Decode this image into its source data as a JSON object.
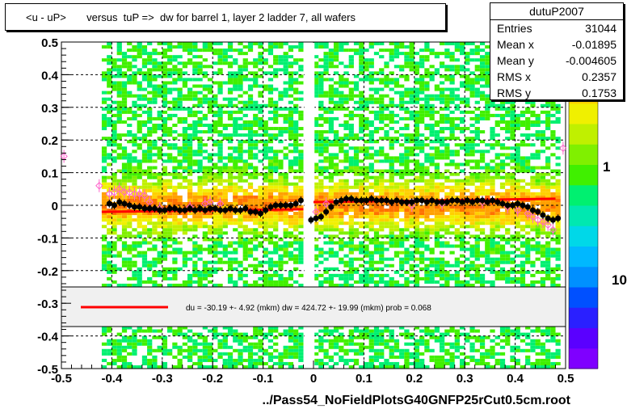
{
  "title": "<u - uP>       versus  tuP =>  dw for barrel 1, layer 2 ladder 7, all wafers",
  "xlabel": "../Pass54_NoFieldPlotsG40GNFP25rCut0.5cm.root",
  "stats": {
    "name": "dutuP2007",
    "rows": [
      {
        "label": "Entries",
        "value": "31044"
      },
      {
        "label": "Mean x",
        "value": "-0.01895"
      },
      {
        "label": "Mean y",
        "value": "-0.004605"
      },
      {
        "label": "RMS x",
        "value": "0.2357"
      },
      {
        "label": "RMS y",
        "value": "0.1753"
      }
    ]
  },
  "fit_text": "du =  -30.19 +-  4.92 (mkm) dw =  424.72 +- 19.99 (mkm) prob = 0.068",
  "palette_labels": [
    "1",
    "10"
  ],
  "chart_data": {
    "type": "scatter",
    "xlim": [
      -0.5,
      0.5
    ],
    "ylim": [
      -0.5,
      0.5
    ],
    "x_ticks": [
      -0.5,
      -0.4,
      -0.3,
      -0.2,
      -0.1,
      0,
      0.1,
      0.2,
      0.3,
      0.4,
      0.5
    ],
    "x_tick_labels": [
      "-0.5",
      "-0.4",
      "-0.3",
      "-0.2",
      "-0.1",
      "0",
      "0.1",
      "0.2",
      "0.3",
      "0.4",
      "0.5"
    ],
    "y_ticks": [
      -0.5,
      -0.4,
      -0.3,
      -0.2,
      -0.1,
      0,
      0.1,
      0.2,
      0.3,
      0.4,
      0.5
    ],
    "y_tick_labels": [
      "-0.5",
      "-0.4",
      "-0.3",
      "-0.2",
      "-0.1",
      "0",
      "0.1",
      "0.2",
      "0.3",
      "0.4",
      "0.5"
    ],
    "grid": true,
    "colors": {
      "fit_line": "#ff0000",
      "black_markers": "#000000",
      "open_markers": "#ff66cc",
      "palette": [
        "#7f00ff",
        "#5a00ff",
        "#2a20ff",
        "#0050ff",
        "#0090ff",
        "#00b8ff",
        "#00d8e8",
        "#00e8b0",
        "#00f070",
        "#40f000",
        "#80f000",
        "#c0f000",
        "#f0f000",
        "#ffd000",
        "#ffa000",
        "#ff7000"
      ]
    },
    "black_series": [
      [
        -0.405,
        0.005
      ],
      [
        -0.395,
        0.0
      ],
      [
        -0.385,
        0.01
      ],
      [
        -0.375,
        0.005
      ],
      [
        -0.365,
        0.0
      ],
      [
        -0.355,
        -0.005
      ],
      [
        -0.345,
        -0.005
      ],
      [
        -0.335,
        -0.01
      ],
      [
        -0.325,
        -0.01
      ],
      [
        -0.315,
        -0.01
      ],
      [
        -0.305,
        -0.015
      ],
      [
        -0.295,
        -0.015
      ],
      [
        -0.285,
        -0.01
      ],
      [
        -0.275,
        -0.01
      ],
      [
        -0.265,
        -0.015
      ],
      [
        -0.255,
        -0.015
      ],
      [
        -0.245,
        -0.01
      ],
      [
        -0.235,
        -0.015
      ],
      [
        -0.225,
        -0.01
      ],
      [
        -0.215,
        -0.015
      ],
      [
        -0.205,
        -0.01
      ],
      [
        -0.195,
        -0.01
      ],
      [
        -0.185,
        -0.015
      ],
      [
        -0.175,
        -0.015
      ],
      [
        -0.165,
        -0.01
      ],
      [
        -0.155,
        -0.015
      ],
      [
        -0.145,
        -0.015
      ],
      [
        -0.135,
        -0.01
      ],
      [
        -0.125,
        -0.02
      ],
      [
        -0.115,
        -0.02
      ],
      [
        -0.105,
        -0.025
      ],
      [
        -0.095,
        -0.015
      ],
      [
        -0.085,
        -0.005
      ],
      [
        -0.075,
        0.0
      ],
      [
        -0.065,
        0.0
      ],
      [
        -0.055,
        0.0
      ],
      [
        -0.045,
        0.0
      ],
      [
        -0.035,
        0.005
      ],
      [
        -0.025,
        0.015
      ],
      [
        -0.005,
        -0.045
      ],
      [
        0.005,
        -0.04
      ],
      [
        0.015,
        -0.035
      ],
      [
        0.025,
        -0.02
      ],
      [
        0.035,
        -0.005
      ],
      [
        0.045,
        0.01
      ],
      [
        0.055,
        0.015
      ],
      [
        0.065,
        0.02
      ],
      [
        0.075,
        0.02
      ],
      [
        0.085,
        0.015
      ],
      [
        0.095,
        0.015
      ],
      [
        0.105,
        0.015
      ],
      [
        0.115,
        0.02
      ],
      [
        0.125,
        0.015
      ],
      [
        0.135,
        0.015
      ],
      [
        0.145,
        0.015
      ],
      [
        0.155,
        0.01
      ],
      [
        0.165,
        0.015
      ],
      [
        0.175,
        0.01
      ],
      [
        0.185,
        0.01
      ],
      [
        0.195,
        0.01
      ],
      [
        0.205,
        0.015
      ],
      [
        0.215,
        0.015
      ],
      [
        0.225,
        0.01
      ],
      [
        0.235,
        0.015
      ],
      [
        0.245,
        0.01
      ],
      [
        0.255,
        0.01
      ],
      [
        0.265,
        0.01
      ],
      [
        0.275,
        0.015
      ],
      [
        0.285,
        0.015
      ],
      [
        0.295,
        0.01
      ],
      [
        0.305,
        0.015
      ],
      [
        0.315,
        0.01
      ],
      [
        0.325,
        0.015
      ],
      [
        0.335,
        0.015
      ],
      [
        0.345,
        0.01
      ],
      [
        0.355,
        0.015
      ],
      [
        0.365,
        0.01
      ],
      [
        0.375,
        0.005
      ],
      [
        0.385,
        0.0
      ],
      [
        0.395,
        0.0
      ],
      [
        0.405,
        0.005
      ],
      [
        0.415,
        0.0
      ],
      [
        0.425,
        -0.005
      ],
      [
        0.435,
        -0.015
      ],
      [
        0.445,
        -0.02
      ],
      [
        0.455,
        -0.03
      ],
      [
        0.465,
        -0.04
      ],
      [
        0.475,
        -0.045
      ],
      [
        0.485,
        -0.04
      ]
    ],
    "open_series": [
      [
        -0.495,
        0.15
      ],
      [
        -0.425,
        0.06
      ],
      [
        -0.405,
        0.035
      ],
      [
        -0.395,
        0.04
      ],
      [
        -0.385,
        0.05
      ],
      [
        -0.375,
        0.04
      ],
      [
        -0.365,
        0.04
      ],
      [
        -0.355,
        0.035
      ],
      [
        -0.345,
        0.035
      ],
      [
        -0.335,
        0.03
      ],
      [
        -0.325,
        0.01
      ],
      [
        -0.305,
        -0.01
      ],
      [
        -0.245,
        -0.005
      ],
      [
        -0.215,
        0.005
      ],
      [
        -0.205,
        0.01
      ],
      [
        -0.185,
        0.005
      ],
      [
        0.005,
        -0.02
      ],
      [
        0.025,
        0.005
      ],
      [
        0.195,
        0.0
      ],
      [
        0.255,
        0.005
      ],
      [
        0.335,
        0.01
      ],
      [
        0.385,
        -0.005
      ],
      [
        0.405,
        -0.015
      ],
      [
        0.425,
        -0.025
      ],
      [
        0.435,
        -0.035
      ],
      [
        0.445,
        -0.045
      ],
      [
        0.455,
        -0.05
      ],
      [
        0.465,
        -0.06
      ],
      [
        0.475,
        -0.075
      ],
      [
        0.495,
        0.175
      ]
    ],
    "fit_segments": [
      {
        "x": [
          -0.42,
          -0.02
        ],
        "y": [
          -0.02,
          -0.012
        ]
      },
      {
        "x": [
          0.0,
          0.48
        ],
        "y": [
          0.01,
          0.02
        ]
      }
    ]
  }
}
